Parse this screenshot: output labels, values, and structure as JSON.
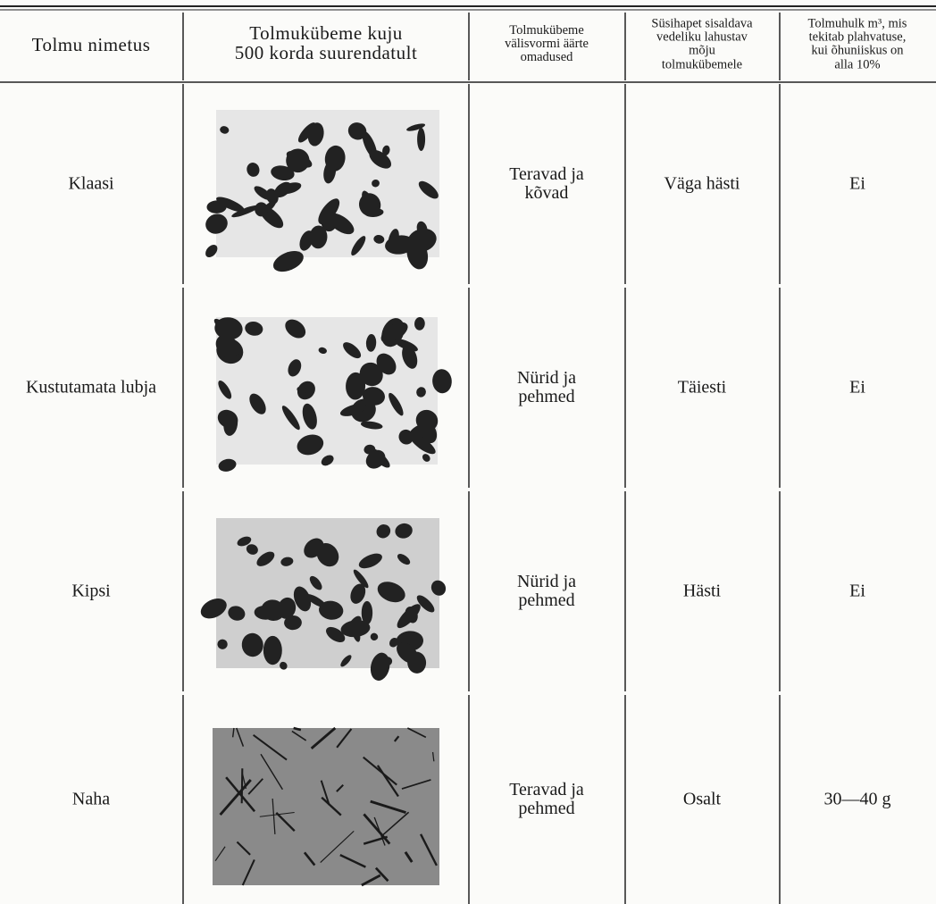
{
  "header": {
    "columns": [
      [
        "Tolmu nimetus"
      ],
      [
        "Tolmukübeme kuju",
        "500 korda suurendatult"
      ],
      [
        "Tolmukübeme",
        "välisvormi äärte",
        "omadused"
      ],
      [
        "Süsihapet sisaldava",
        "vedeliku lahustav",
        "mõju",
        "tolmukübemele"
      ],
      [
        "Tolmuhulk m³, mis",
        "tekitab plahvatuse,",
        "kui õhuniiskus on",
        "alla 10%"
      ]
    ]
  },
  "rows": [
    {
      "name": "Klaasi",
      "edges": [
        "Teravad ja",
        "kõvad"
      ],
      "dissolution": "Väga hästi",
      "amount": "Ei"
    },
    {
      "name": "Kustutamata lubja",
      "edges": [
        "Nürid ja",
        "pehmed"
      ],
      "dissolution": "Täiesti",
      "amount": "Ei"
    },
    {
      "name": "Kipsi",
      "edges": [
        "Nürid ja",
        "pehmed"
      ],
      "dissolution": "Hästi",
      "amount": "Ei"
    },
    {
      "name": "Naha",
      "edges": [
        "Teravad ja",
        "pehmed"
      ],
      "dissolution": "Osalt",
      "amount": "30—40 g"
    }
  ]
}
